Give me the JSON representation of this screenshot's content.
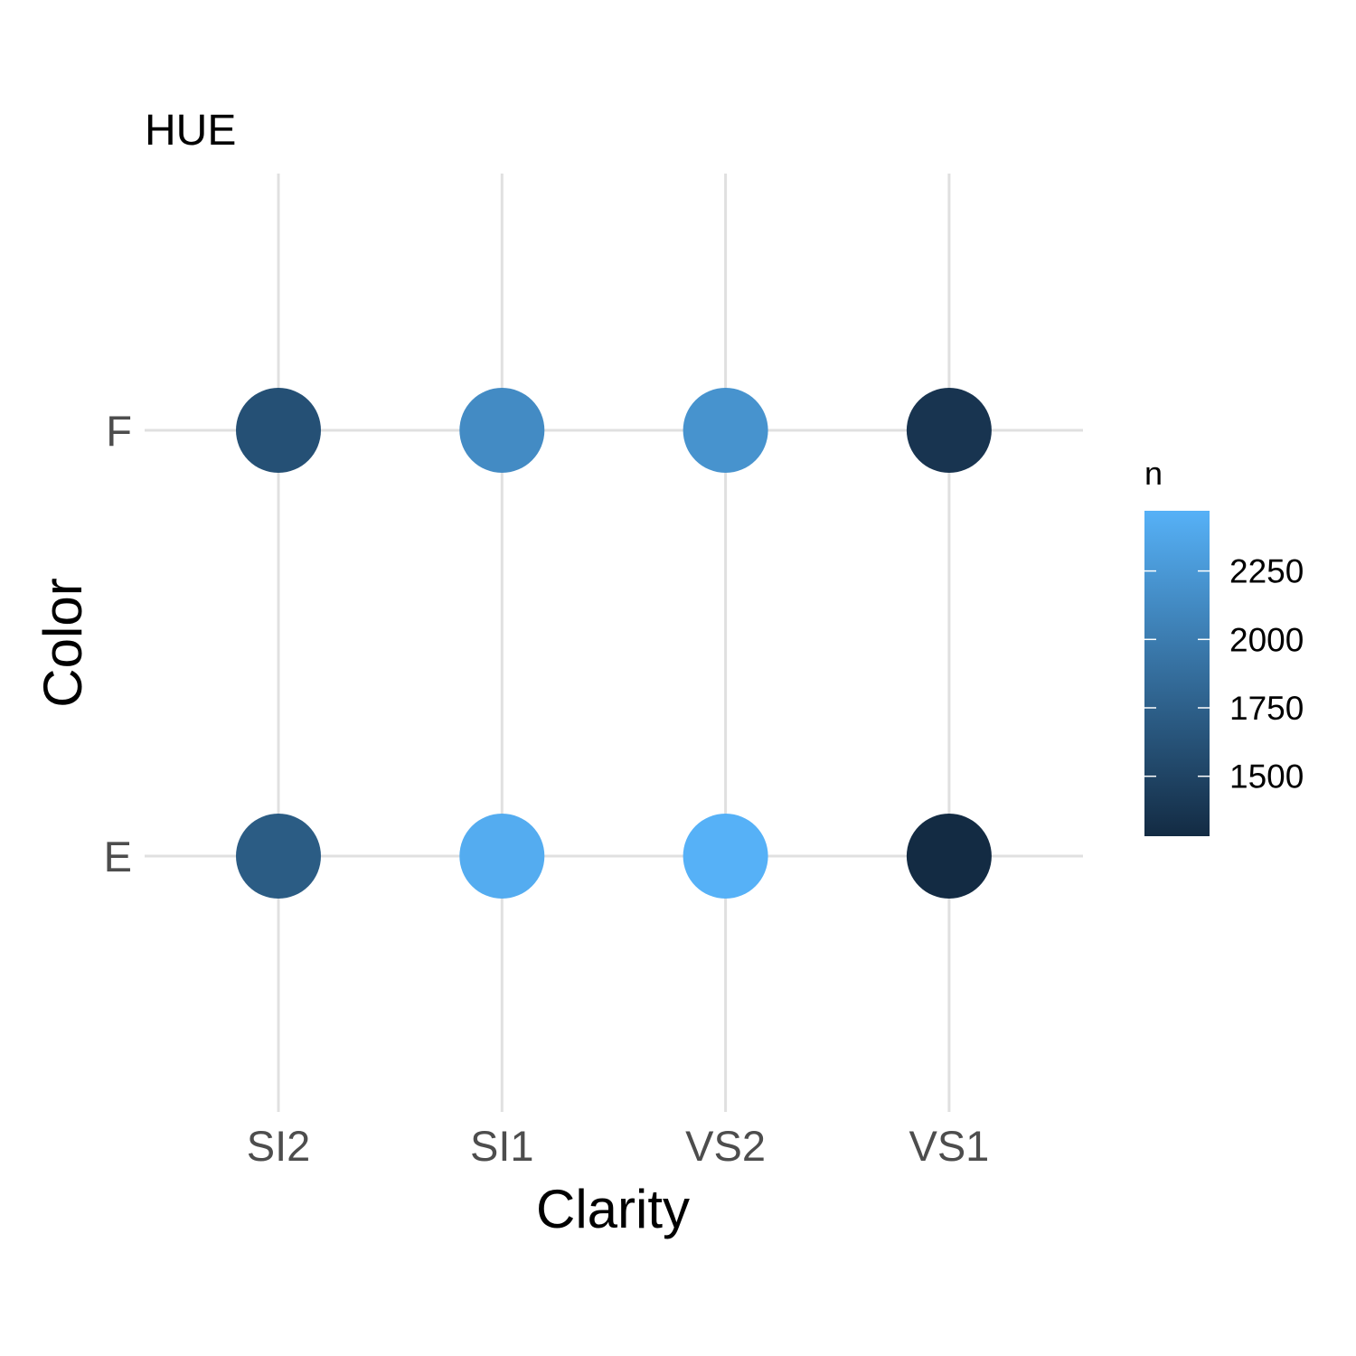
{
  "chart_data": {
    "type": "scatter",
    "title": "HUE",
    "xlabel": "Clarity",
    "ylabel": "Color",
    "x_categories": [
      "SI2",
      "SI1",
      "VS2",
      "VS1"
    ],
    "y_categories": [
      "E",
      "F"
    ],
    "points": [
      {
        "x": "SI2",
        "y": "E",
        "n": 1713
      },
      {
        "x": "SI1",
        "y": "E",
        "n": 2426
      },
      {
        "x": "VS2",
        "y": "E",
        "n": 2470
      },
      {
        "x": "VS1",
        "y": "E",
        "n": 1281
      },
      {
        "x": "SI2",
        "y": "F",
        "n": 1609
      },
      {
        "x": "SI1",
        "y": "F",
        "n": 2131
      },
      {
        "x": "VS2",
        "y": "F",
        "n": 2201
      },
      {
        "x": "VS1",
        "y": "F",
        "n": 1364
      }
    ],
    "legend": {
      "title": "n",
      "ticks": [
        1500,
        1750,
        2000,
        2250
      ],
      "tick_labels": [
        "1500",
        "1750",
        "2000",
        "2250"
      ],
      "range": [
        1281,
        2470
      ],
      "low_color": "#132B43",
      "high_color": "#56B1F7",
      "placement": "right"
    },
    "grid": true
  }
}
